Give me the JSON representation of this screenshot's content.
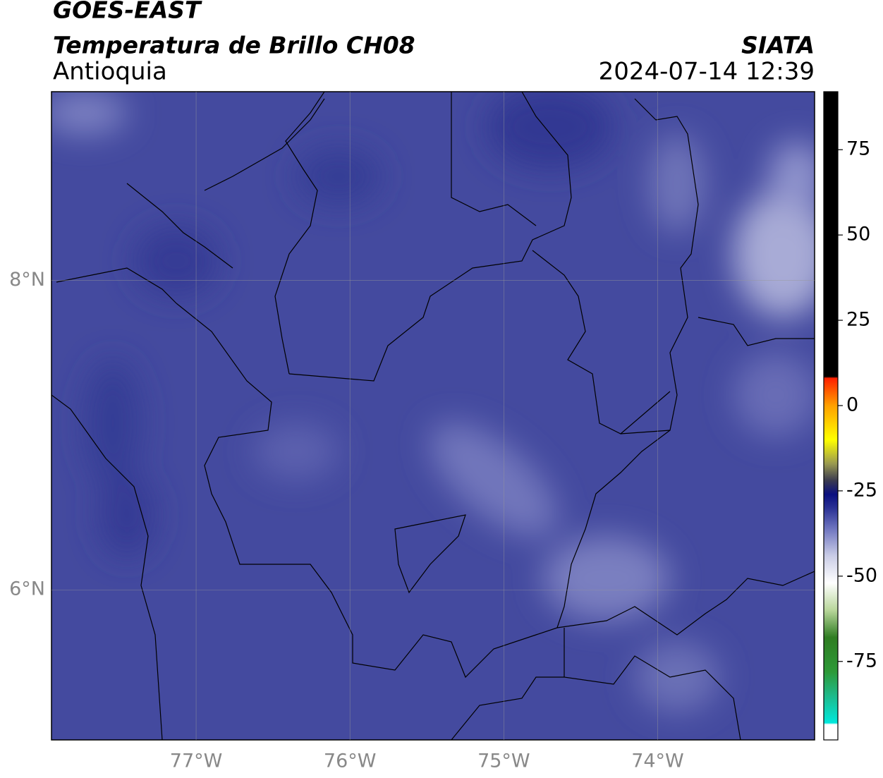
{
  "chart_data": {
    "type": "map",
    "title": "GOES-EAST",
    "subtitle": "Temperatura de Brillo CH08",
    "region": "Antioquia",
    "source": "SIATA",
    "datetime": "2024-07-14 12:39",
    "xlim": [
      -77.94,
      -72.98
    ],
    "ylim": [
      5.03,
      9.22
    ],
    "xticks": [
      {
        "value": -77,
        "label": "77°W"
      },
      {
        "value": -76,
        "label": "76°W"
      },
      {
        "value": -75,
        "label": "75°W"
      },
      {
        "value": -74,
        "label": "74°W"
      }
    ],
    "yticks": [
      {
        "value": 6,
        "label": "6°N"
      },
      {
        "value": 8,
        "label": "8°N"
      }
    ],
    "grid": true,
    "colorbar": {
      "lim": [
        -98,
        92
      ],
      "ticks": [
        -75,
        -50,
        -25,
        0,
        25,
        50,
        75
      ],
      "stops": [
        {
          "value": -98,
          "color": "#ffffff"
        },
        {
          "value": -93.5,
          "color": "#ffffff"
        },
        {
          "value": -93,
          "color": "#00e8dc"
        },
        {
          "value": -85,
          "color": "#1fb98a"
        },
        {
          "value": -78,
          "color": "#2e9a38"
        },
        {
          "value": -68,
          "color": "#2f7d22"
        },
        {
          "value": -60,
          "color": "#b8d69a"
        },
        {
          "value": -52,
          "color": "#ffffff"
        },
        {
          "value": -44,
          "color": "#c9cce6"
        },
        {
          "value": -36,
          "color": "#6e74bf"
        },
        {
          "value": -30,
          "color": "#2a3194"
        },
        {
          "value": -26,
          "color": "#0a0f80"
        },
        {
          "value": -22,
          "color": "#3a3a50"
        },
        {
          "value": -17,
          "color": "#9a9a50"
        },
        {
          "value": -10,
          "color": "#ffff00"
        },
        {
          "value": 0,
          "color": "#ffa000"
        },
        {
          "value": 8,
          "color": "#ff2000"
        },
        {
          "value": 8.5,
          "color": "#000000"
        },
        {
          "value": 92,
          "color": "#000000"
        }
      ]
    }
  }
}
